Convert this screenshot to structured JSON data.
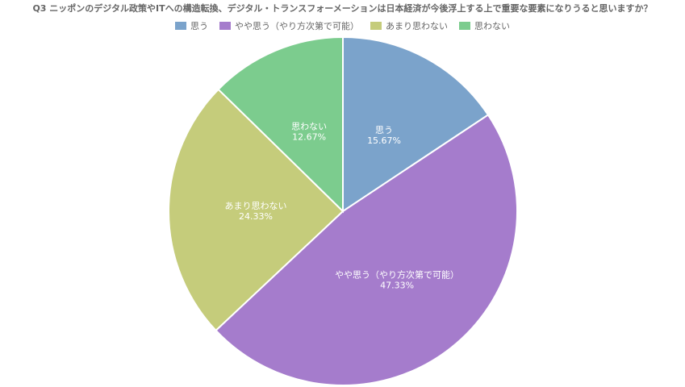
{
  "chart_data": {
    "type": "pie",
    "title": "Q3 ニッポンのデジタル政策やITへの構造転換、デジタル・トランスフォーメーションは日本経済が今後浮上する上で重要な要素になりうると思いますか？",
    "legend_position": "top",
    "categories": [
      "思う",
      "やや思う（やり方次第で可能）",
      "あまり思わない",
      "思わない"
    ],
    "values": [
      15.67,
      47.33,
      24.33,
      12.67
    ],
    "value_labels": [
      "15.67%",
      "47.33%",
      "24.33%",
      "12.67%"
    ],
    "colors": [
      "#7ba3cb",
      "#a57ccc",
      "#c5cc7b",
      "#7ccc8e"
    ]
  }
}
